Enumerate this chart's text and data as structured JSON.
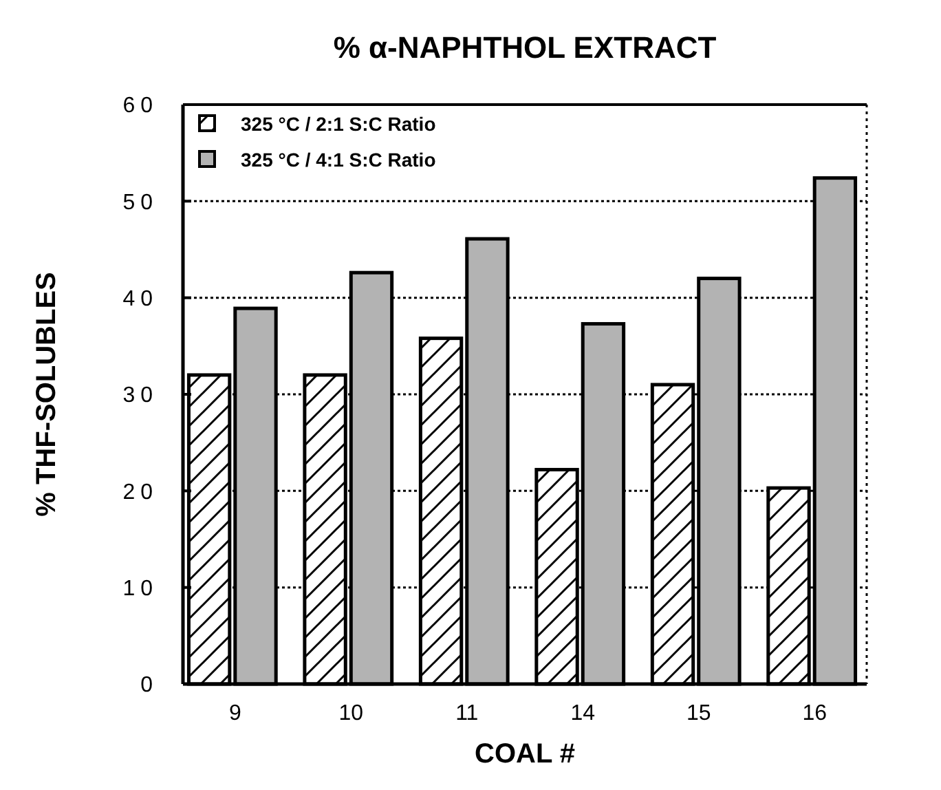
{
  "chart_data": {
    "type": "bar",
    "title": "% α-NAPHTHOL EXTRACT",
    "xlabel": "COAL #",
    "ylabel": "% THF-SOLUBLES",
    "categories": [
      "9",
      "10",
      "11",
      "14",
      "15",
      "16"
    ],
    "series": [
      {
        "name": "325 °C / 2:1 S:C Ratio",
        "color": "#000000",
        "values": [
          32.0,
          32.0,
          35.8,
          22.2,
          31.0,
          20.3
        ]
      },
      {
        "name": "325 °C / 4:1 S:C Ratio",
        "color": "#b3b3b3",
        "values": [
          38.9,
          42.6,
          46.1,
          37.3,
          42.0,
          52.4
        ]
      }
    ],
    "ylim": [
      0,
      60
    ],
    "yticks": [
      0,
      10,
      20,
      30,
      40,
      50,
      60
    ],
    "grid": "y",
    "legend": "top left"
  }
}
